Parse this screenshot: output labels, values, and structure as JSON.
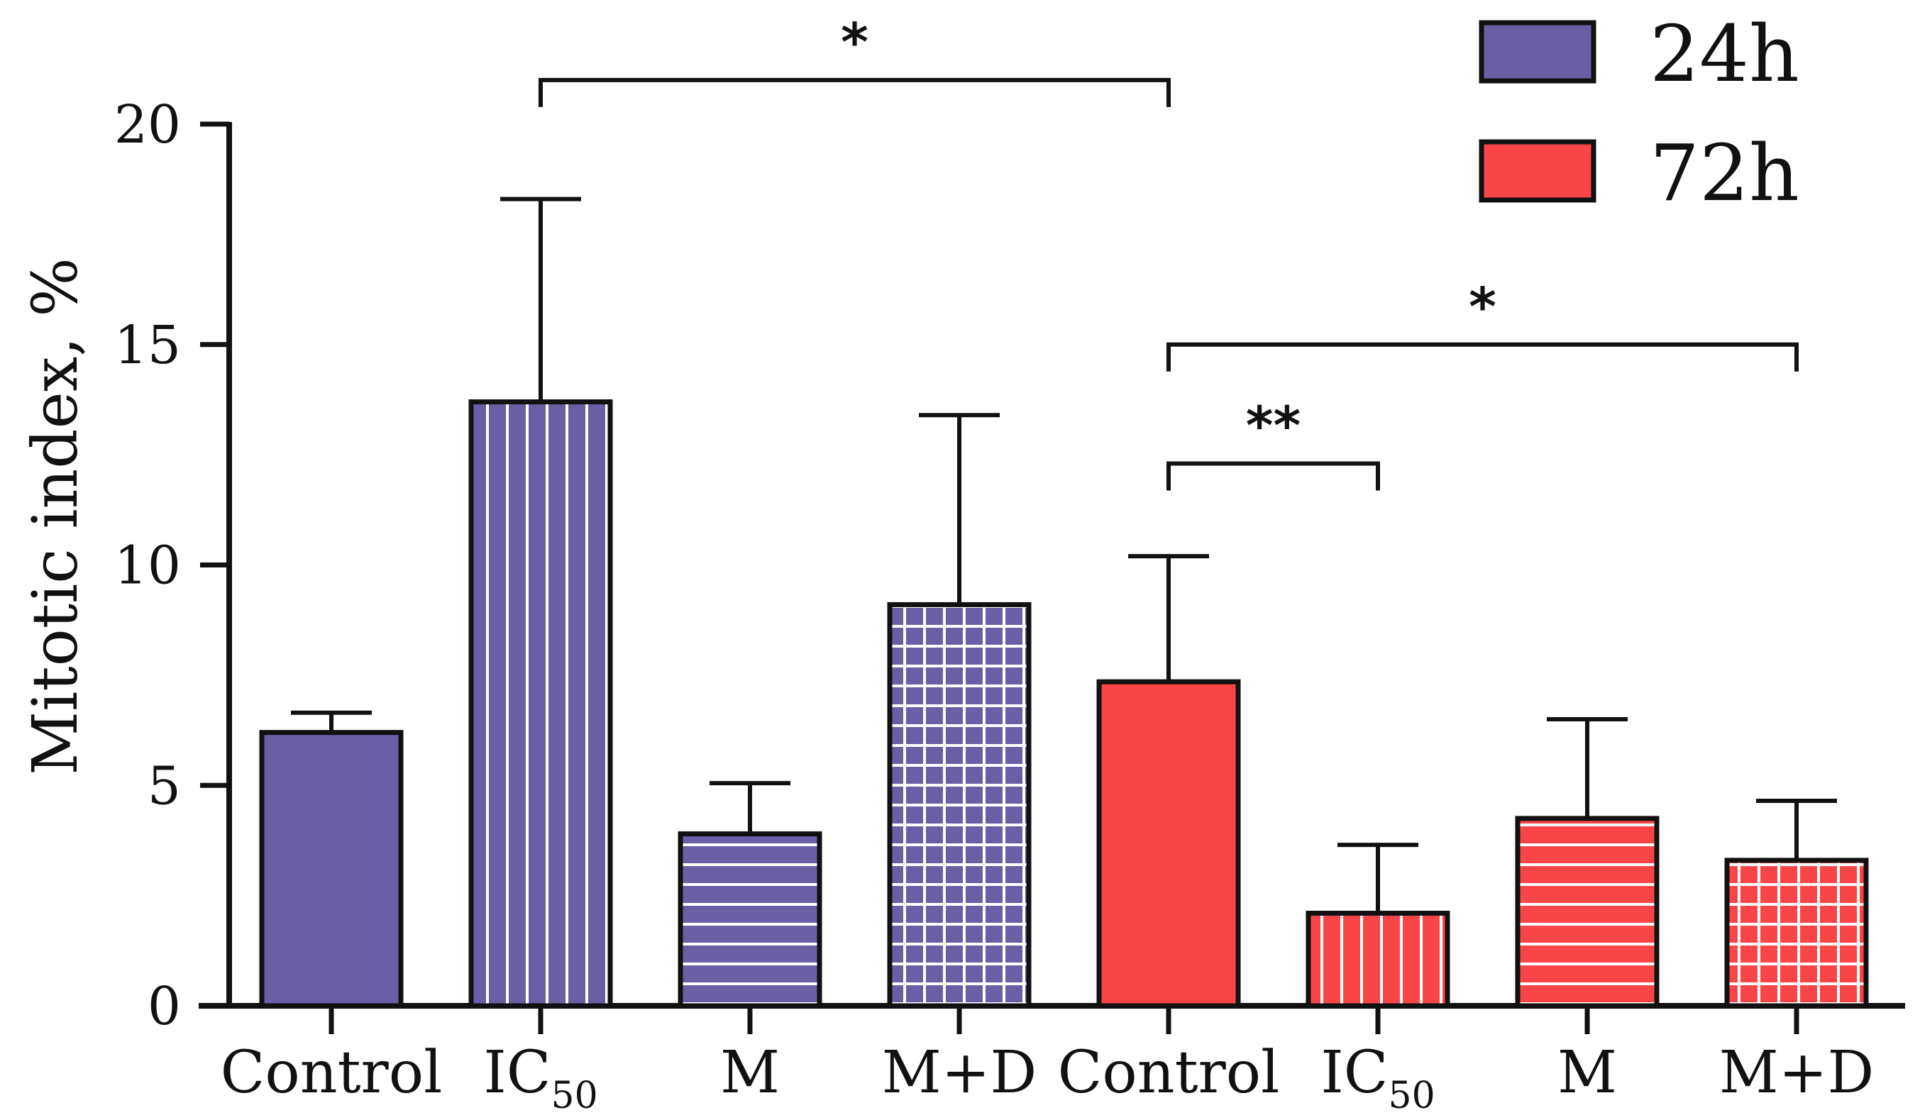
{
  "chart_data": {
    "type": "bar",
    "title": "",
    "xlabel": "",
    "ylabel": "Mitotic index, %",
    "ylim": [
      0,
      20
    ],
    "yticks": [
      0,
      5,
      10,
      15,
      20
    ],
    "categories": [
      {
        "label": "Control",
        "sub": ""
      },
      {
        "label": "IC",
        "sub": "50"
      },
      {
        "label": "M",
        "sub": ""
      },
      {
        "label": "M+D",
        "sub": ""
      },
      {
        "label": "Control",
        "sub": ""
      },
      {
        "label": "IC",
        "sub": "50"
      },
      {
        "label": "M",
        "sub": ""
      },
      {
        "label": "M+D",
        "sub": ""
      }
    ],
    "series": [
      {
        "name": "24h",
        "color": "#6a5ea5"
      },
      {
        "name": "72h",
        "color": "#fa4548"
      }
    ],
    "bars": [
      {
        "series": 0,
        "value": 6.2,
        "error": 0.45,
        "pattern": "solid"
      },
      {
        "series": 0,
        "value": 13.7,
        "error": 4.6,
        "pattern": "vertical"
      },
      {
        "series": 0,
        "value": 3.9,
        "error": 1.15,
        "pattern": "horizontal"
      },
      {
        "series": 0,
        "value": 9.1,
        "error": 4.3,
        "pattern": "grid"
      },
      {
        "series": 1,
        "value": 7.35,
        "error": 2.85,
        "pattern": "solid"
      },
      {
        "series": 1,
        "value": 2.1,
        "error": 1.55,
        "pattern": "vertical"
      },
      {
        "series": 1,
        "value": 4.25,
        "error": 2.25,
        "pattern": "horizontal"
      },
      {
        "series": 1,
        "value": 3.3,
        "error": 1.35,
        "pattern": "grid"
      }
    ],
    "legend": {
      "position": "top-right",
      "entries": [
        "24h",
        "72h"
      ]
    },
    "significance": [
      {
        "from": 1,
        "to": 4,
        "label": "*",
        "level": 21.0
      },
      {
        "from": 4,
        "to": 7,
        "label": "*",
        "level": 15.0
      },
      {
        "from": 4,
        "to": 5,
        "label": "**",
        "level": 12.3
      }
    ]
  }
}
